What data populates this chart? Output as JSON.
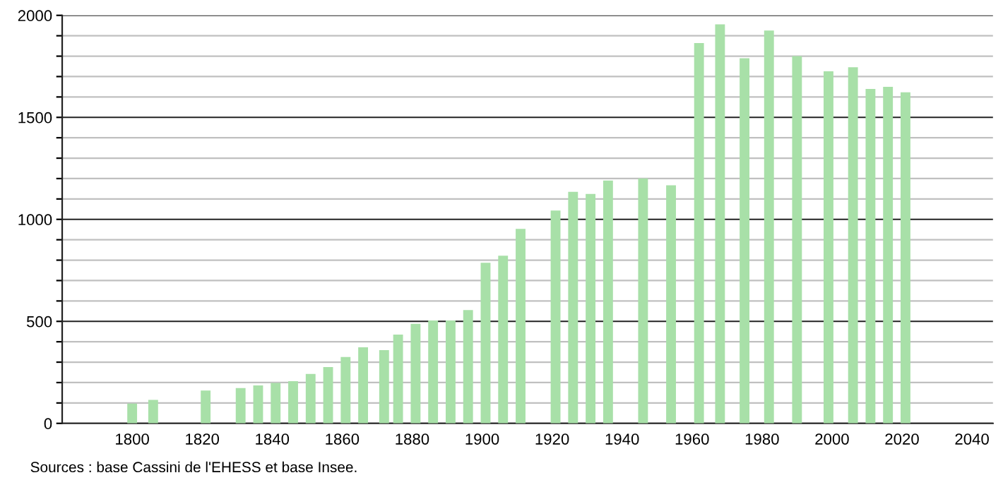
{
  "chart_data": {
    "type": "bar",
    "x": [
      1800,
      1806,
      1821,
      1831,
      1836,
      1841,
      1846,
      1851,
      1856,
      1861,
      1866,
      1872,
      1876,
      1881,
      1886,
      1891,
      1896,
      1901,
      1906,
      1911,
      1921,
      1926,
      1931,
      1936,
      1946,
      1954,
      1962,
      1968,
      1975,
      1982,
      1990,
      1999,
      2006,
      2011,
      2016,
      2021
    ],
    "values": [
      97,
      115,
      161,
      173,
      186,
      198,
      207,
      242,
      276,
      325,
      373,
      359,
      435,
      488,
      504,
      504,
      555,
      787,
      822,
      953,
      1043,
      1135,
      1125,
      1190,
      1201,
      1167,
      1864,
      1956,
      1790,
      1926,
      1800,
      1726,
      1746,
      1639,
      1650,
      1623
    ],
    "color": "#a8e0a8",
    "xlim": [
      1780,
      2046
    ],
    "xticks": [
      1800,
      1820,
      1840,
      1860,
      1880,
      1900,
      1920,
      1940,
      1960,
      1980,
      2000,
      2020,
      2040
    ],
    "ylim": [
      0,
      2000
    ],
    "yticks": [
      0,
      {
        "value": 100,
        "label": null
      },
      {
        "value": 200,
        "label": null
      },
      {
        "value": 300,
        "label": null
      },
      {
        "value": 400,
        "label": null
      },
      500,
      {
        "value": 600,
        "label": null
      },
      {
        "value": 700,
        "label": null
      },
      {
        "value": 800,
        "label": null
      },
      {
        "value": 900,
        "label": null
      },
      1000,
      {
        "value": 1100,
        "label": null
      },
      {
        "value": 1200,
        "label": null
      },
      {
        "value": 1300,
        "label": null
      },
      {
        "value": 1400,
        "label": null
      },
      1500,
      {
        "value": 1600,
        "label": null
      },
      {
        "value": 1700,
        "label": null
      },
      {
        "value": 1800,
        "label": null
      },
      {
        "value": 1900,
        "label": null
      },
      2000
    ],
    "grid": "y",
    "annotations": [
      "Sources : base Cassini de l'EHESS et base Insee."
    ]
  }
}
